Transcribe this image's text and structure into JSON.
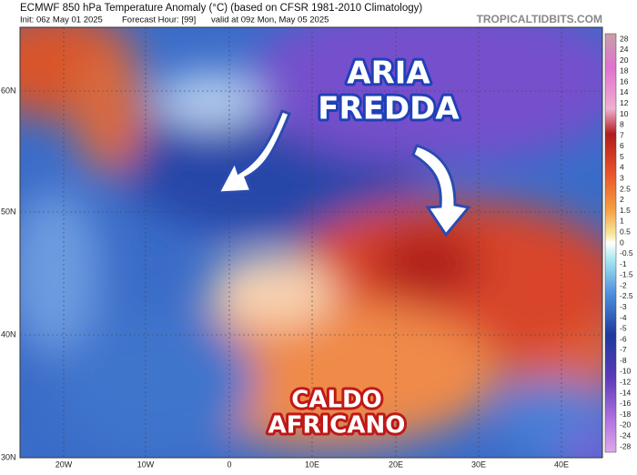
{
  "header": {
    "title": "ECMWF 850 hPa Temperature Anomaly (°C) (based on CFSR 1981-2010 Climatology)",
    "init": "Init: 06z May 01 2025",
    "forecast_hour": "Forecast Hour: [99]",
    "valid": "valid at 09z Mon, May 05 2025",
    "site": "TROPICALTIDBITS.COM"
  },
  "map": {
    "lat_labels": [
      "60N",
      "50N",
      "40N",
      "30N"
    ],
    "lon_labels": [
      "20W",
      "10W",
      "0",
      "10E",
      "20E",
      "30E",
      "40E"
    ],
    "annotations": [
      {
        "lines": [
          "ARIA",
          "FREDDA"
        ]
      },
      {
        "lines": [
          "CALDO",
          "AFRICANO"
        ]
      }
    ]
  },
  "colorbar": {
    "labels": [
      28,
      24,
      20,
      18,
      16,
      14,
      12,
      10,
      8,
      7,
      6,
      5,
      4,
      3,
      2.5,
      2,
      1.5,
      1,
      0.5,
      0,
      -0.5,
      -1,
      -1.5,
      -2,
      -2.5,
      -3,
      -4,
      -5,
      -6,
      -7,
      -8,
      -10,
      -12,
      -14,
      -16,
      -18,
      -20,
      -24,
      -28
    ]
  }
}
